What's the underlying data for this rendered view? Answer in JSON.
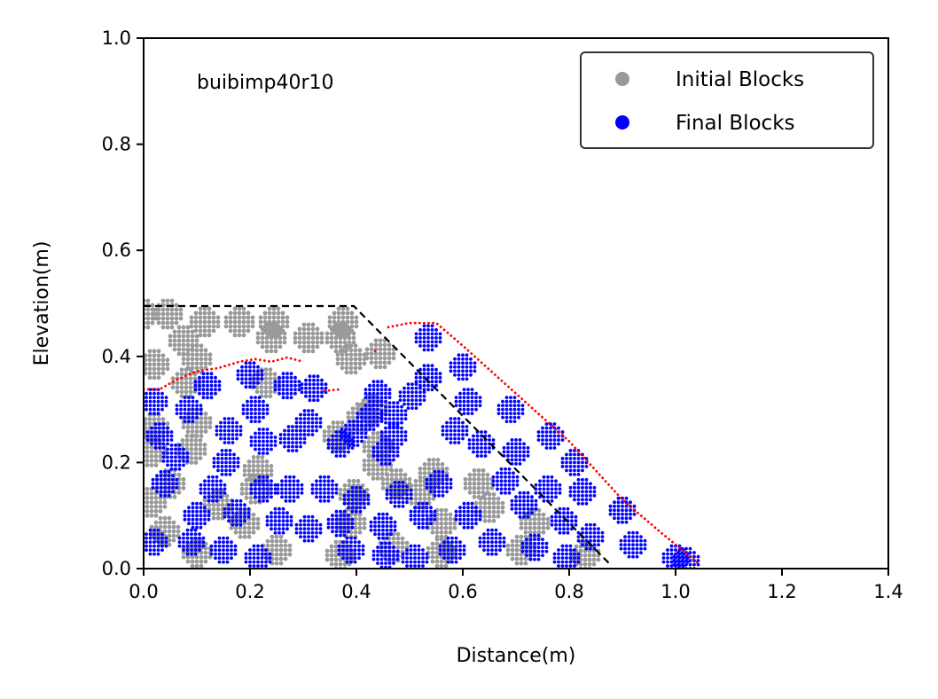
{
  "chart_data": {
    "type": "scatter",
    "title": "",
    "annotation": "buibimp40r10",
    "xlabel": "Distance(m)",
    "ylabel": "Elevation(m)",
    "xlim": [
      0.0,
      1.4
    ],
    "ylim": [
      0.0,
      1.0
    ],
    "x_ticks": [
      "0.0",
      "0.2",
      "0.4",
      "0.6",
      "0.8",
      "1.0",
      "1.2",
      "1.4"
    ],
    "y_ticks": [
      "0.0",
      "0.2",
      "0.4",
      "0.6",
      "0.8",
      "1.0"
    ],
    "legend": {
      "position": "top-right",
      "entries": [
        {
          "label": "Initial Blocks",
          "color": "#999999"
        },
        {
          "label": "Final Blocks",
          "color": "#0000ff"
        }
      ]
    },
    "initial_slope_profile": {
      "style": "dashed",
      "color": "#000000",
      "points": [
        [
          0.0,
          0.495
        ],
        [
          0.395,
          0.495
        ],
        [
          0.875,
          0.01
        ]
      ]
    },
    "final_surface_profile": {
      "style": "dotted",
      "color": "#ff0000",
      "segments": [
        [
          [
            0.0,
            0.338
          ],
          [
            0.03,
            0.338
          ],
          [
            0.06,
            0.355
          ],
          [
            0.1,
            0.372
          ],
          [
            0.14,
            0.378
          ],
          [
            0.18,
            0.39
          ],
          [
            0.21,
            0.395
          ],
          [
            0.24,
            0.39
          ],
          [
            0.27,
            0.398
          ],
          [
            0.3,
            0.39
          ]
        ],
        [
          [
            0.34,
            0.335
          ],
          [
            0.37,
            0.338
          ]
        ],
        [
          [
            0.435,
            0.41
          ],
          [
            0.44,
            0.412
          ]
        ],
        [
          [
            0.46,
            0.455
          ],
          [
            0.5,
            0.463
          ],
          [
            0.55,
            0.463
          ],
          [
            0.6,
            0.42
          ],
          [
            0.7,
            0.33
          ],
          [
            0.8,
            0.24
          ],
          [
            0.9,
            0.13
          ],
          [
            0.97,
            0.07
          ],
          [
            1.045,
            0.008
          ]
        ]
      ]
    },
    "series": [
      {
        "name": "Initial Blocks",
        "color": "#999999",
        "block_centers": [
          [
            0.0,
            0.48
          ],
          [
            0.045,
            0.48
          ],
          [
            0.115,
            0.465
          ],
          [
            0.18,
            0.465
          ],
          [
            0.245,
            0.465
          ],
          [
            0.375,
            0.465
          ],
          [
            0.075,
            0.43
          ],
          [
            0.24,
            0.435
          ],
          [
            0.31,
            0.435
          ],
          [
            0.37,
            0.435
          ],
          [
            0.02,
            0.385
          ],
          [
            0.1,
            0.395
          ],
          [
            0.39,
            0.395
          ],
          [
            0.445,
            0.405
          ],
          [
            0.08,
            0.35
          ],
          [
            0.23,
            0.35
          ],
          [
            0.43,
            0.3
          ],
          [
            0.41,
            0.285
          ],
          [
            0.1,
            0.275
          ],
          [
            0.02,
            0.265
          ],
          [
            0.365,
            0.25
          ],
          [
            0.44,
            0.23
          ],
          [
            0.015,
            0.22
          ],
          [
            0.09,
            0.225
          ],
          [
            0.44,
            0.195
          ],
          [
            0.215,
            0.185
          ],
          [
            0.05,
            0.16
          ],
          [
            0.21,
            0.15
          ],
          [
            0.545,
            0.18
          ],
          [
            0.63,
            0.16
          ],
          [
            0.475,
            0.16
          ],
          [
            0.395,
            0.14
          ],
          [
            0.52,
            0.14
          ],
          [
            0.65,
            0.115
          ],
          [
            0.015,
            0.125
          ],
          [
            0.14,
            0.12
          ],
          [
            0.56,
            0.085
          ],
          [
            0.735,
            0.085
          ],
          [
            0.39,
            0.085
          ],
          [
            0.19,
            0.085
          ],
          [
            0.04,
            0.07
          ],
          [
            0.47,
            0.04
          ],
          [
            0.1,
            0.03
          ],
          [
            0.25,
            0.035
          ],
          [
            0.37,
            0.025
          ],
          [
            0.56,
            0.03
          ],
          [
            0.71,
            0.035
          ],
          [
            0.83,
            0.025
          ]
        ]
      },
      {
        "name": "Final Blocks",
        "color": "#0000ff",
        "block_centers": [
          [
            0.02,
            0.315
          ],
          [
            0.12,
            0.345
          ],
          [
            0.2,
            0.365
          ],
          [
            0.27,
            0.345
          ],
          [
            0.32,
            0.34
          ],
          [
            0.085,
            0.3
          ],
          [
            0.21,
            0.3
          ],
          [
            0.31,
            0.275
          ],
          [
            0.16,
            0.26
          ],
          [
            0.03,
            0.25
          ],
          [
            0.225,
            0.24
          ],
          [
            0.28,
            0.245
          ],
          [
            0.37,
            0.235
          ],
          [
            0.06,
            0.21
          ],
          [
            0.155,
            0.2
          ],
          [
            0.425,
            0.285
          ],
          [
            0.395,
            0.255
          ],
          [
            0.455,
            0.22
          ],
          [
            0.47,
            0.25
          ],
          [
            0.44,
            0.33
          ],
          [
            0.535,
            0.435
          ],
          [
            0.535,
            0.36
          ],
          [
            0.505,
            0.325
          ],
          [
            0.6,
            0.38
          ],
          [
            0.61,
            0.315
          ],
          [
            0.69,
            0.3
          ],
          [
            0.47,
            0.29
          ],
          [
            0.585,
            0.26
          ],
          [
            0.635,
            0.235
          ],
          [
            0.7,
            0.22
          ],
          [
            0.765,
            0.25
          ],
          [
            0.81,
            0.2
          ],
          [
            0.04,
            0.16
          ],
          [
            0.13,
            0.15
          ],
          [
            0.225,
            0.15
          ],
          [
            0.275,
            0.15
          ],
          [
            0.34,
            0.15
          ],
          [
            0.4,
            0.13
          ],
          [
            0.48,
            0.14
          ],
          [
            0.555,
            0.16
          ],
          [
            0.68,
            0.165
          ],
          [
            0.76,
            0.15
          ],
          [
            0.825,
            0.145
          ],
          [
            0.1,
            0.1
          ],
          [
            0.175,
            0.105
          ],
          [
            0.255,
            0.09
          ],
          [
            0.31,
            0.075
          ],
          [
            0.37,
            0.085
          ],
          [
            0.45,
            0.08
          ],
          [
            0.525,
            0.1
          ],
          [
            0.61,
            0.1
          ],
          [
            0.715,
            0.12
          ],
          [
            0.79,
            0.09
          ],
          [
            0.9,
            0.11
          ],
          [
            0.84,
            0.06
          ],
          [
            0.02,
            0.05
          ],
          [
            0.09,
            0.05
          ],
          [
            0.15,
            0.035
          ],
          [
            0.215,
            0.02
          ],
          [
            0.39,
            0.035
          ],
          [
            0.455,
            0.025
          ],
          [
            0.51,
            0.02
          ],
          [
            0.58,
            0.035
          ],
          [
            0.655,
            0.05
          ],
          [
            0.735,
            0.04
          ],
          [
            0.795,
            0.02
          ],
          [
            0.92,
            0.045
          ],
          [
            1.0,
            0.02
          ],
          [
            1.02,
            0.015
          ]
        ]
      }
    ]
  }
}
